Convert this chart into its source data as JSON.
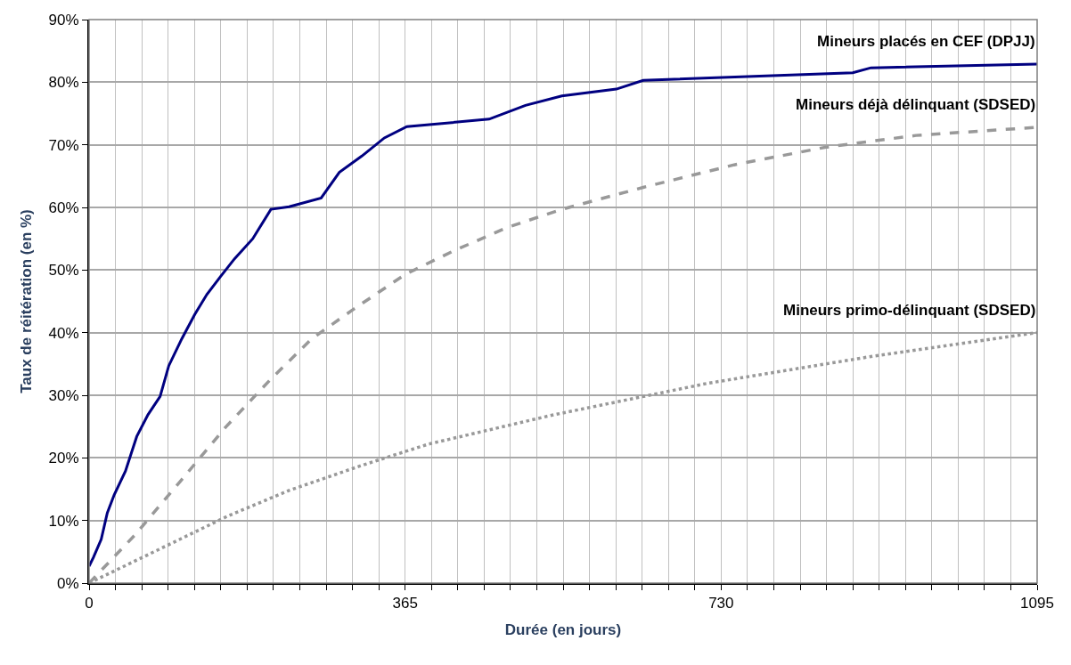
{
  "chart_data": {
    "type": "line",
    "xlabel": "Durée (en jours)",
    "ylabel": "Taux de réitération (en %)",
    "xlim": [
      0,
      1095
    ],
    "ylim": [
      0,
      90
    ],
    "xticks": [
      0,
      {
        "value": 30.42,
        "label": null
      },
      {
        "value": 60.83,
        "label": null
      },
      {
        "value": 91.25,
        "label": null
      },
      {
        "value": 121.67,
        "label": null
      },
      {
        "value": 152.08,
        "label": null
      },
      {
        "value": 182.5,
        "label": null
      },
      {
        "value": 212.92,
        "label": null
      },
      {
        "value": 243.33,
        "label": null
      },
      {
        "value": 273.75,
        "label": null
      },
      {
        "value": 304.17,
        "label": null
      },
      {
        "value": 334.58,
        "label": null
      },
      365,
      {
        "value": 395.42,
        "label": null
      },
      {
        "value": 425.83,
        "label": null
      },
      {
        "value": 456.25,
        "label": null
      },
      {
        "value": 486.67,
        "label": null
      },
      {
        "value": 517.08,
        "label": null
      },
      {
        "value": 547.5,
        "label": null
      },
      {
        "value": 577.92,
        "label": null
      },
      {
        "value": 608.33,
        "label": null
      },
      {
        "value": 638.75,
        "label": null
      },
      {
        "value": 669.17,
        "label": null
      },
      {
        "value": 699.58,
        "label": null
      },
      730,
      {
        "value": 760.42,
        "label": null
      },
      {
        "value": 790.83,
        "label": null
      },
      {
        "value": 821.25,
        "label": null
      },
      {
        "value": 851.67,
        "label": null
      },
      {
        "value": 882.08,
        "label": null
      },
      {
        "value": 912.5,
        "label": null
      },
      {
        "value": 942.92,
        "label": null
      },
      {
        "value": 973.33,
        "label": null
      },
      {
        "value": 1003.75,
        "label": null
      },
      {
        "value": 1034.17,
        "label": null
      },
      {
        "value": 1064.58,
        "label": null
      },
      1095
    ],
    "yticks": [
      {
        "value": 0,
        "label": "0%"
      },
      {
        "value": 10,
        "label": "10%"
      },
      {
        "value": 20,
        "label": "20%"
      },
      {
        "value": 30,
        "label": "30%"
      },
      {
        "value": 40,
        "label": "40%"
      },
      {
        "value": 50,
        "label": "50%"
      },
      {
        "value": 60,
        "label": "60%"
      },
      {
        "value": 70,
        "label": "70%"
      },
      {
        "value": 80,
        "label": "80%"
      },
      {
        "value": 90,
        "label": "90%"
      }
    ],
    "grid": true,
    "legend": false,
    "marker": "none",
    "series": [
      {
        "name": "Mineurs placés en CEF (DPJJ)",
        "color": "#000080",
        "line_style": "solid",
        "x": [
          0,
          5,
          14,
          21,
          29,
          42,
          55,
          68,
          82,
          92,
          107,
          122,
          136,
          152,
          168,
          189,
          210,
          231,
          268,
          289,
          315,
          341,
          367,
          462,
          504,
          546,
          609,
          640,
          882,
          903,
          1095
        ],
        "values": [
          2.7,
          4.1,
          7.0,
          11.2,
          14.1,
          17.9,
          23.4,
          26.9,
          29.8,
          34.7,
          39.0,
          42.9,
          46.1,
          49.0,
          51.8,
          55.0,
          59.7,
          60.1,
          61.5,
          65.6,
          68.2,
          71.1,
          72.9,
          74.1,
          76.3,
          77.8,
          78.9,
          80.3,
          81.5,
          82.3,
          82.9
        ]
      },
      {
        "name": "Mineurs déjà délinquant (SDSED)",
        "color": "#999999",
        "line_style": "dashed",
        "x": [
          0,
          53,
          105,
          157,
          210,
          257,
          305,
          365,
          420,
          483,
          546,
          640,
          745,
          850,
          955,
          1095
        ],
        "values": [
          0,
          7.7,
          16.2,
          24.8,
          32.6,
          39.0,
          43.7,
          49.3,
          53.0,
          56.8,
          59.7,
          63.2,
          66.8,
          69.6,
          71.5,
          72.8
        ]
      },
      {
        "name": "Mineurs primo-délinquant (SDSED)",
        "color": "#999999",
        "line_style": "dotted",
        "x": [
          0,
          84,
          160,
          231,
          315,
          392,
          534,
          714,
          908,
          1095
        ],
        "values": [
          0,
          5.6,
          10.7,
          14.8,
          18.8,
          22.2,
          26.8,
          31.9,
          36.3,
          40.0
        ]
      }
    ]
  }
}
